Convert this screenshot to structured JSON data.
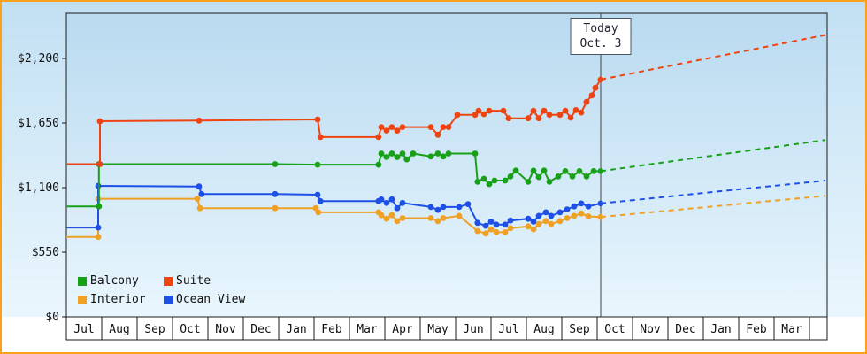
{
  "frame": {
    "border_color": "#f9a11b",
    "plot_gradient_top": "#b9daf0",
    "plot_gradient_bottom": "#e9f6fd",
    "axis_color": "#1a1a1a",
    "today_line_color": "#444444"
  },
  "chart_data": {
    "type": "line",
    "description": "Cruise cabin price history by category with projection after today",
    "legend_position": "bottom-left",
    "today_marker": {
      "label_line1": "Today",
      "label_line2": "Oct. 3",
      "x": 15.1
    },
    "y_axis": {
      "ticks": [
        {
          "value": 0,
          "label": "$0"
        },
        {
          "value": 550,
          "label": "$550"
        },
        {
          "value": 1100,
          "label": "$1,100"
        },
        {
          "value": 1650,
          "label": "$1,650"
        },
        {
          "value": 2200,
          "label": "$2,200"
        }
      ]
    },
    "x_axis": {
      "month_labels": [
        "Jul",
        "Aug",
        "Sep",
        "Oct",
        "Nov",
        "Dec",
        "Jan",
        "Feb",
        "Mar",
        "Apr",
        "May",
        "Jun",
        "Jul",
        "Aug",
        "Sep",
        "Oct",
        "Nov",
        "Dec",
        "Jan",
        "Feb",
        "Mar"
      ],
      "range": [
        0,
        21.5
      ]
    },
    "legend": {
      "items": [
        {
          "label": "Balcony",
          "color": "#18a018"
        },
        {
          "label": "Suite",
          "color": "#ee4412"
        },
        {
          "label": "Interior",
          "color": "#efa126"
        },
        {
          "label": "Ocean View",
          "color": "#1e50e6"
        }
      ]
    },
    "series": [
      {
        "name": "Interior",
        "color": "#efa126",
        "points": [
          [
            0,
            680
          ],
          [
            0.9,
            680
          ],
          [
            0.9,
            1005
          ],
          [
            3.7,
            1005
          ],
          [
            3.78,
            925
          ],
          [
            5.9,
            925
          ],
          [
            7.05,
            925
          ],
          [
            7.12,
            890
          ],
          [
            8.82,
            890
          ],
          [
            8.9,
            865
          ],
          [
            9.05,
            835
          ],
          [
            9.2,
            865
          ],
          [
            9.35,
            815
          ],
          [
            9.5,
            840
          ],
          [
            10.3,
            840
          ],
          [
            10.5,
            815
          ],
          [
            10.65,
            840
          ],
          [
            11.1,
            860
          ],
          [
            11.62,
            730
          ],
          [
            11.85,
            710
          ],
          [
            12.0,
            745
          ],
          [
            12.15,
            720
          ],
          [
            12.4,
            720
          ],
          [
            12.55,
            755
          ],
          [
            13.05,
            770
          ],
          [
            13.2,
            745
          ],
          [
            13.35,
            790
          ],
          [
            13.55,
            815
          ],
          [
            13.7,
            790
          ],
          [
            13.95,
            815
          ],
          [
            14.15,
            840
          ],
          [
            14.35,
            860
          ],
          [
            14.55,
            880
          ],
          [
            14.75,
            855
          ],
          [
            15.1,
            850
          ]
        ],
        "projection": [
          [
            15.1,
            850
          ],
          [
            21.45,
            1030
          ]
        ]
      },
      {
        "name": "Ocean View",
        "color": "#1e50e6",
        "points": [
          [
            0,
            760
          ],
          [
            0.9,
            760
          ],
          [
            0.9,
            1115
          ],
          [
            3.75,
            1110
          ],
          [
            3.82,
            1045
          ],
          [
            5.9,
            1045
          ],
          [
            7.1,
            1040
          ],
          [
            7.18,
            985
          ],
          [
            8.82,
            985
          ],
          [
            8.9,
            1000
          ],
          [
            9.05,
            970
          ],
          [
            9.2,
            1000
          ],
          [
            9.35,
            925
          ],
          [
            9.5,
            970
          ],
          [
            10.3,
            935
          ],
          [
            10.5,
            910
          ],
          [
            10.65,
            935
          ],
          [
            11.1,
            935
          ],
          [
            11.35,
            960
          ],
          [
            11.62,
            800
          ],
          [
            11.85,
            775
          ],
          [
            12.0,
            810
          ],
          [
            12.15,
            785
          ],
          [
            12.4,
            785
          ],
          [
            12.55,
            820
          ],
          [
            13.05,
            835
          ],
          [
            13.2,
            810
          ],
          [
            13.35,
            860
          ],
          [
            13.55,
            890
          ],
          [
            13.7,
            860
          ],
          [
            13.95,
            890
          ],
          [
            14.15,
            915
          ],
          [
            14.35,
            940
          ],
          [
            14.55,
            965
          ],
          [
            14.75,
            940
          ],
          [
            15.1,
            965
          ]
        ],
        "projection": [
          [
            15.1,
            965
          ],
          [
            21.45,
            1160
          ]
        ]
      },
      {
        "name": "Balcony",
        "color": "#18a018",
        "points": [
          [
            0,
            940
          ],
          [
            0.92,
            940
          ],
          [
            0.92,
            1300
          ],
          [
            5.9,
            1300
          ],
          [
            7.1,
            1295
          ],
          [
            8.82,
            1295
          ],
          [
            8.9,
            1390
          ],
          [
            9.05,
            1360
          ],
          [
            9.2,
            1390
          ],
          [
            9.35,
            1360
          ],
          [
            9.5,
            1390
          ],
          [
            9.62,
            1340
          ],
          [
            9.8,
            1390
          ],
          [
            10.3,
            1365
          ],
          [
            10.5,
            1390
          ],
          [
            10.65,
            1365
          ],
          [
            10.8,
            1390
          ],
          [
            11.55,
            1390
          ],
          [
            11.62,
            1150
          ],
          [
            11.8,
            1175
          ],
          [
            11.95,
            1130
          ],
          [
            12.1,
            1160
          ],
          [
            12.4,
            1160
          ],
          [
            12.55,
            1195
          ],
          [
            12.7,
            1245
          ],
          [
            13.05,
            1150
          ],
          [
            13.2,
            1245
          ],
          [
            13.35,
            1190
          ],
          [
            13.5,
            1245
          ],
          [
            13.65,
            1150
          ],
          [
            13.9,
            1195
          ],
          [
            14.1,
            1240
          ],
          [
            14.3,
            1195
          ],
          [
            14.5,
            1240
          ],
          [
            14.7,
            1195
          ],
          [
            14.9,
            1240
          ],
          [
            15.1,
            1240
          ]
        ],
        "projection": [
          [
            15.1,
            1240
          ],
          [
            21.45,
            1505
          ]
        ]
      },
      {
        "name": "Suite",
        "color": "#ee4412",
        "points": [
          [
            0,
            1300
          ],
          [
            0.95,
            1300
          ],
          [
            0.95,
            1665
          ],
          [
            3.75,
            1670
          ],
          [
            7.1,
            1680
          ],
          [
            7.18,
            1530
          ],
          [
            8.82,
            1530
          ],
          [
            8.9,
            1615
          ],
          [
            9.05,
            1585
          ],
          [
            9.2,
            1615
          ],
          [
            9.35,
            1585
          ],
          [
            9.5,
            1615
          ],
          [
            10.3,
            1615
          ],
          [
            10.5,
            1550
          ],
          [
            10.65,
            1615
          ],
          [
            10.8,
            1615
          ],
          [
            11.05,
            1720
          ],
          [
            11.55,
            1720
          ],
          [
            11.65,
            1755
          ],
          [
            11.8,
            1725
          ],
          [
            11.95,
            1755
          ],
          [
            12.35,
            1755
          ],
          [
            12.5,
            1690
          ],
          [
            13.05,
            1690
          ],
          [
            13.2,
            1755
          ],
          [
            13.35,
            1690
          ],
          [
            13.5,
            1755
          ],
          [
            13.65,
            1720
          ],
          [
            13.95,
            1720
          ],
          [
            14.1,
            1755
          ],
          [
            14.25,
            1695
          ],
          [
            14.4,
            1760
          ],
          [
            14.55,
            1740
          ],
          [
            14.7,
            1830
          ],
          [
            14.85,
            1885
          ],
          [
            14.95,
            1950
          ],
          [
            15.1,
            2020
          ]
        ],
        "projection": [
          [
            15.1,
            2020
          ],
          [
            21.45,
            2400
          ]
        ]
      }
    ]
  }
}
